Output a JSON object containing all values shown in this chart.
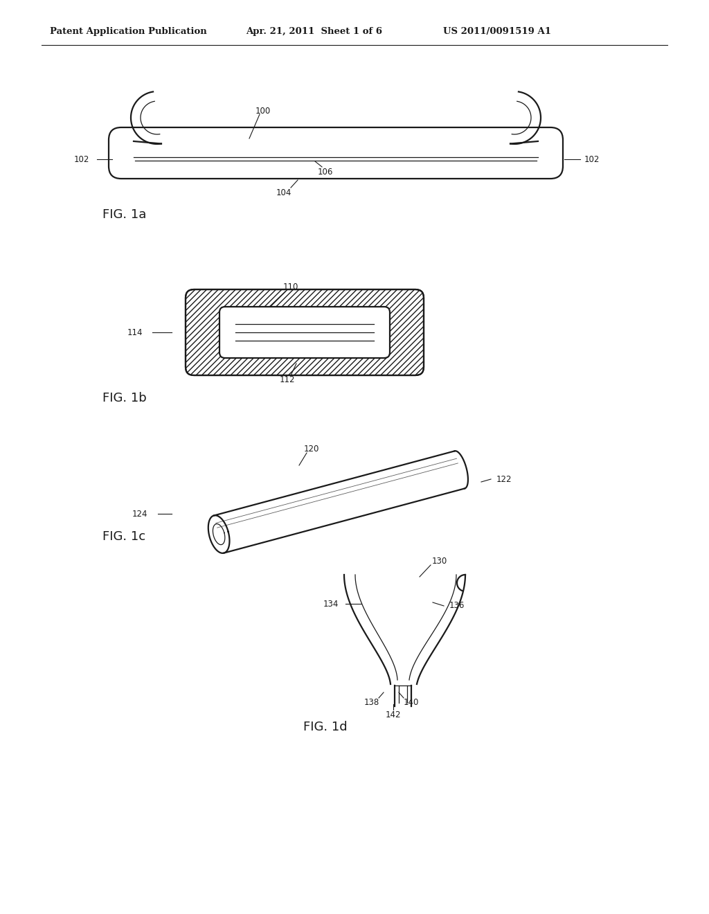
{
  "bg_color": "#ffffff",
  "header_left": "Patent Application Publication",
  "header_mid": "Apr. 21, 2011  Sheet 1 of 6",
  "header_right": "US 2011/0091519 A1",
  "line_color": "#1a1a1a",
  "lw_main": 1.6,
  "lw_thin": 0.9,
  "lw_med": 1.2
}
